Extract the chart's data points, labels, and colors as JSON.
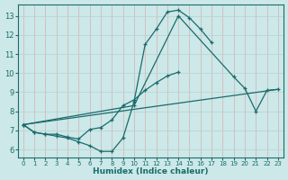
{
  "xlabel": "Humidex (Indice chaleur)",
  "bg_color": "#cce8e8",
  "line_color": "#1a6b6b",
  "hgrid_color": "#b8d0d0",
  "vgrid_color": "#d4b0b0",
  "xlim": [
    -0.5,
    23.5
  ],
  "ylim": [
    5.6,
    13.6
  ],
  "xticks": [
    0,
    1,
    2,
    3,
    4,
    5,
    6,
    7,
    8,
    9,
    10,
    11,
    12,
    13,
    14,
    15,
    16,
    17,
    18,
    19,
    20,
    21,
    22,
    23
  ],
  "yticks": [
    6,
    7,
    8,
    9,
    10,
    11,
    12,
    13
  ],
  "line1_x": [
    0,
    1,
    2,
    3,
    4,
    5,
    6,
    7,
    8,
    9,
    10,
    11,
    12,
    13,
    14,
    15,
    16,
    17
  ],
  "line1_y": [
    7.3,
    6.9,
    6.8,
    6.7,
    6.6,
    6.4,
    6.2,
    5.9,
    5.9,
    6.6,
    8.5,
    11.5,
    12.3,
    13.2,
    13.3,
    12.9,
    12.3,
    11.6
  ],
  "line2_x": [
    0,
    1,
    2,
    3,
    4,
    5,
    6,
    7,
    8,
    9,
    10,
    11,
    12,
    13,
    14
  ],
  "line2_y": [
    7.3,
    6.9,
    6.8,
    6.8,
    6.65,
    6.55,
    7.05,
    7.15,
    7.55,
    8.3,
    8.6,
    9.1,
    9.5,
    9.85,
    10.05
  ],
  "line3_x": [
    0,
    10,
    14,
    19,
    20,
    21,
    22,
    23
  ],
  "line3_y": [
    7.3,
    8.3,
    13.0,
    9.8,
    9.2,
    8.0,
    9.1,
    9.15
  ],
  "line4_x": [
    0,
    23
  ],
  "line4_y": [
    7.3,
    9.15
  ]
}
